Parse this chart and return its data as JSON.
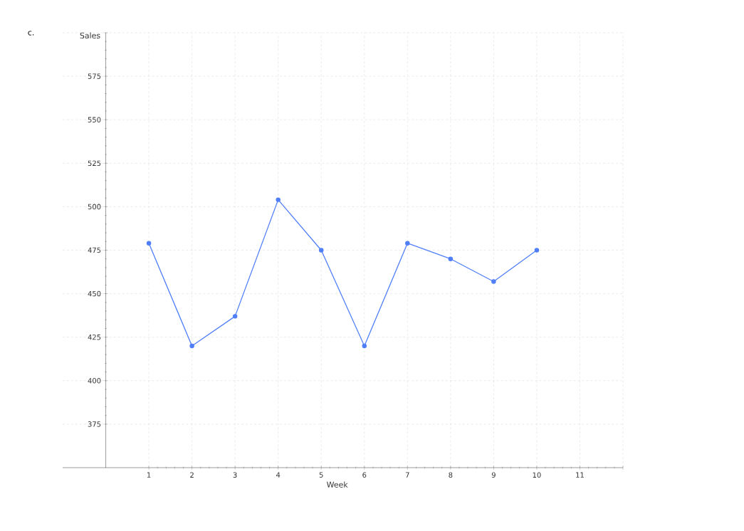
{
  "chart_data": {
    "type": "line",
    "xlabel": "Week",
    "ylabel": "Sales",
    "annotations": [
      "c."
    ],
    "x": [
      1,
      2,
      3,
      4,
      5,
      6,
      7,
      8,
      9,
      10
    ],
    "series": [
      {
        "color": "#4f7ef8",
        "values": [
          479,
          420,
          437,
          504,
          475,
          420,
          479,
          470,
          457,
          475
        ]
      }
    ],
    "xlim": [
      -1,
      12
    ],
    "ylim": [
      350,
      600
    ],
    "xticks": [
      1,
      2,
      3,
      4,
      5,
      6,
      7,
      8,
      9,
      10,
      11,
      {
        "value": 12,
        "label": null
      }
    ],
    "yticks": [
      375,
      400,
      425,
      450,
      475,
      500,
      525,
      550,
      575,
      {
        "value": 600,
        "label": null
      }
    ],
    "grid": true,
    "marker": "circle",
    "line_style": "solid"
  }
}
